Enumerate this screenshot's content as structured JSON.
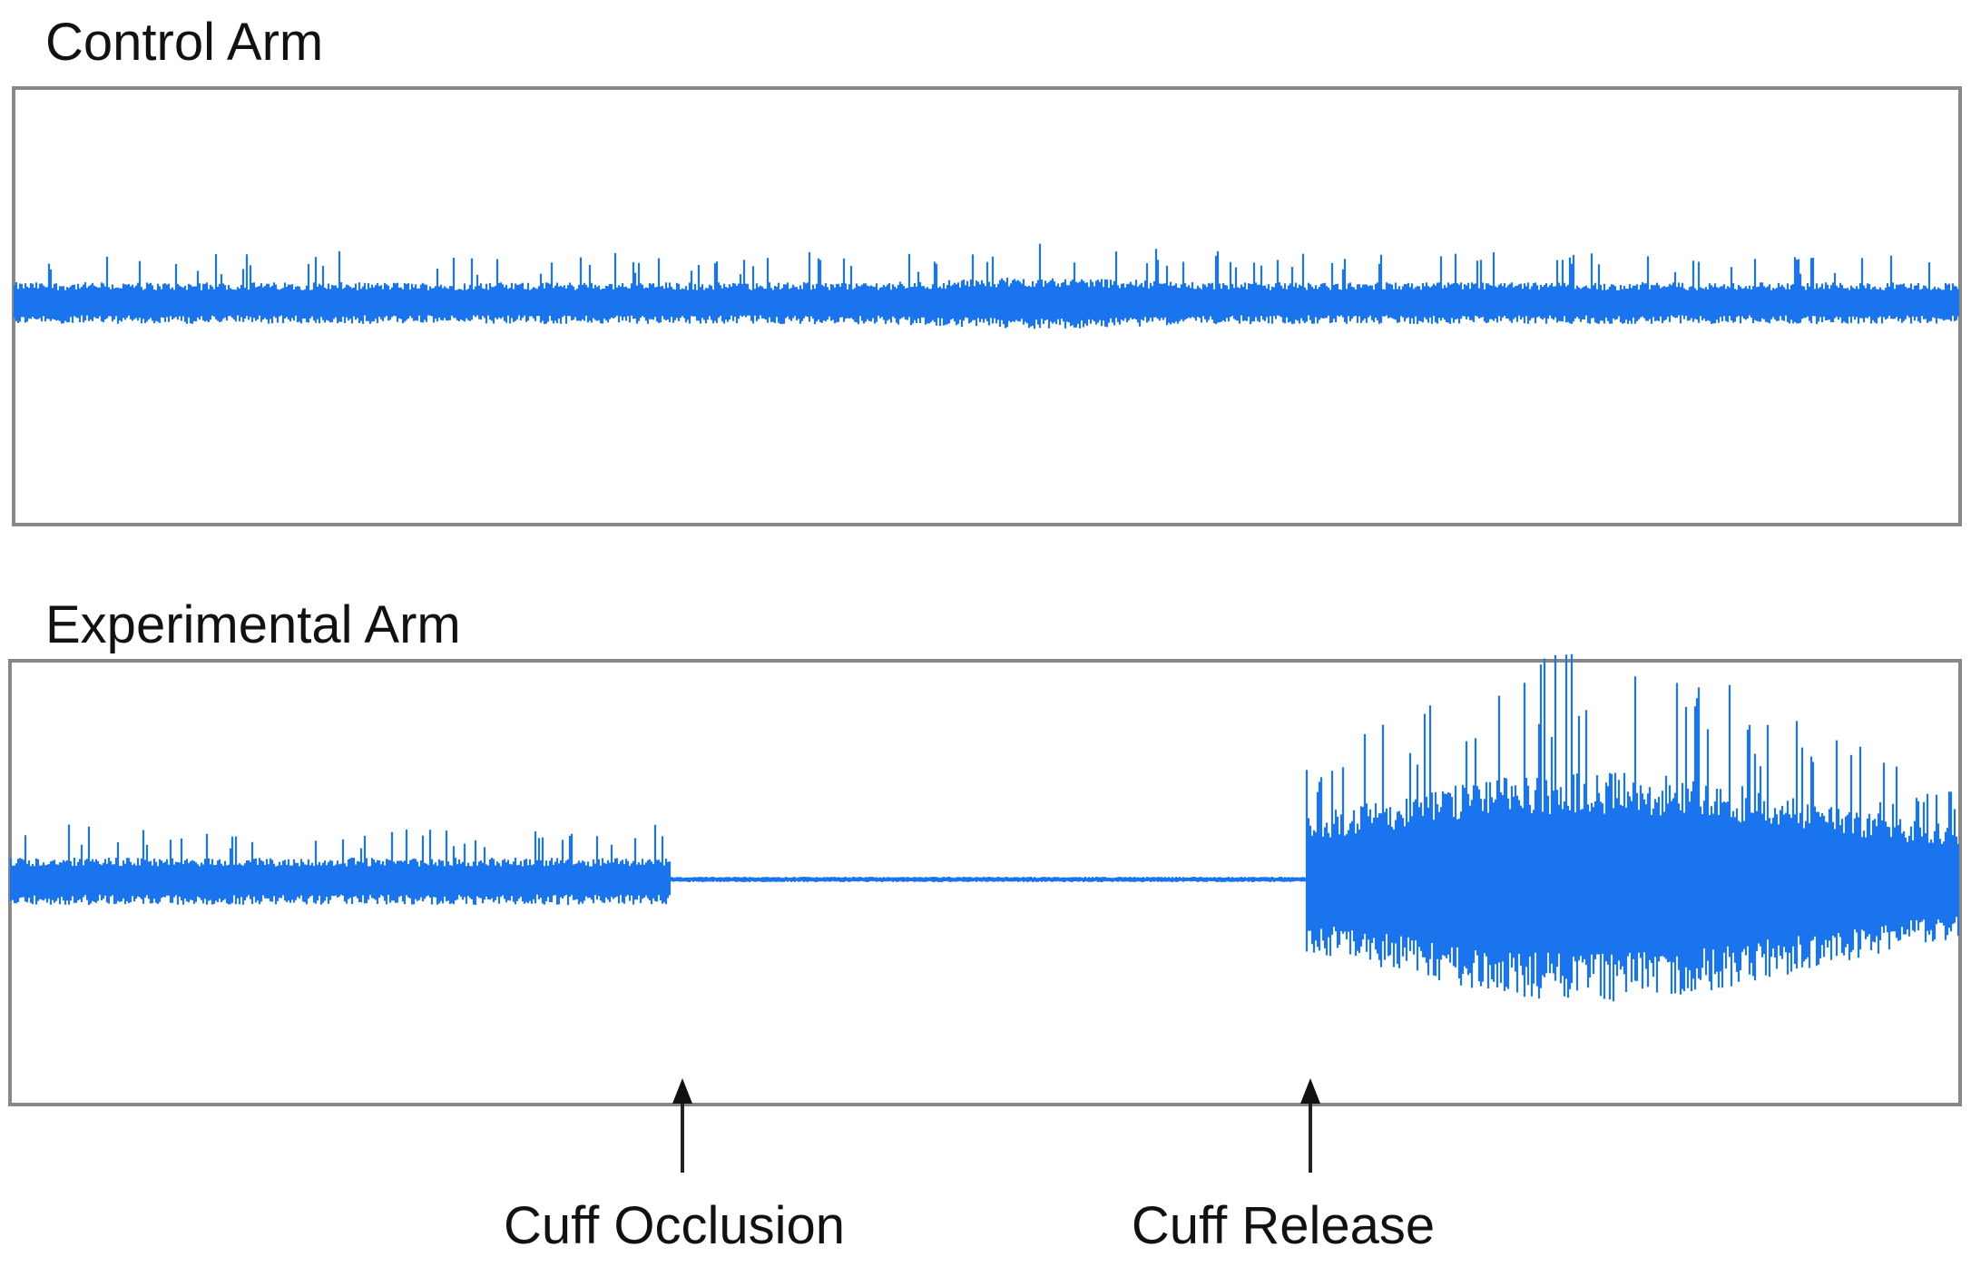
{
  "panels": [
    {
      "title": "Control Arm"
    },
    {
      "title": "Experimental Arm"
    }
  ],
  "annotations": [
    {
      "label": "Cuff Occlusion"
    },
    {
      "label": "Cuff Release"
    }
  ]
}
